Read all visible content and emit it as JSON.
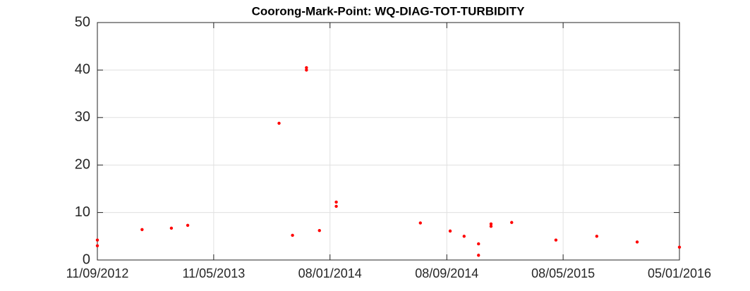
{
  "chart_data": {
    "type": "scatter",
    "title": "Coorong-Mark-Point: WQ-DIAG-TOT-TURBIDITY",
    "x": [
      "2012-09-11",
      "2012-09-11",
      "2012-12-13",
      "2013-02-12",
      "2013-03-18",
      "2013-09-24",
      "2013-10-22",
      "2013-11-20",
      "2013-11-20",
      "2013-12-17",
      "2014-01-21",
      "2014-01-21",
      "2014-07-15",
      "2014-09-15",
      "2014-10-14",
      "2014-11-13",
      "2014-11-13",
      "2014-12-09",
      "2014-12-09",
      "2015-01-21",
      "2015-04-23",
      "2015-07-17",
      "2015-10-09",
      "2016-01-05"
    ],
    "series": [
      {
        "color": "#ff0000",
        "values": [
          4.2,
          3.0,
          6.4,
          6.7,
          7.3,
          28.8,
          5.2,
          40.5,
          40.0,
          6.2,
          12.2,
          11.3,
          7.8,
          6.1,
          5.0,
          3.4,
          1.0,
          7.6,
          7.1,
          7.9,
          4.2,
          5.0,
          3.8,
          2.7
        ]
      }
    ],
    "xlim": [
      "2012-09-11",
      "2016-01-05"
    ],
    "xticks": [
      {
        "value": "2012-09-11",
        "label": "11/09/2012"
      },
      {
        "value": "2013-05-11",
        "label": "11/05/2013"
      },
      {
        "value": "2014-01-08",
        "label": "08/01/2014"
      },
      {
        "value": "2014-09-08",
        "label": "08/09/2014"
      },
      {
        "value": "2015-05-08",
        "label": "08/05/2015"
      },
      {
        "value": "2016-01-05",
        "label": "05/01/2016"
      }
    ],
    "ylim": [
      0,
      50
    ],
    "yticks": [
      0,
      10,
      20,
      30,
      40,
      50
    ],
    "grid": true
  }
}
